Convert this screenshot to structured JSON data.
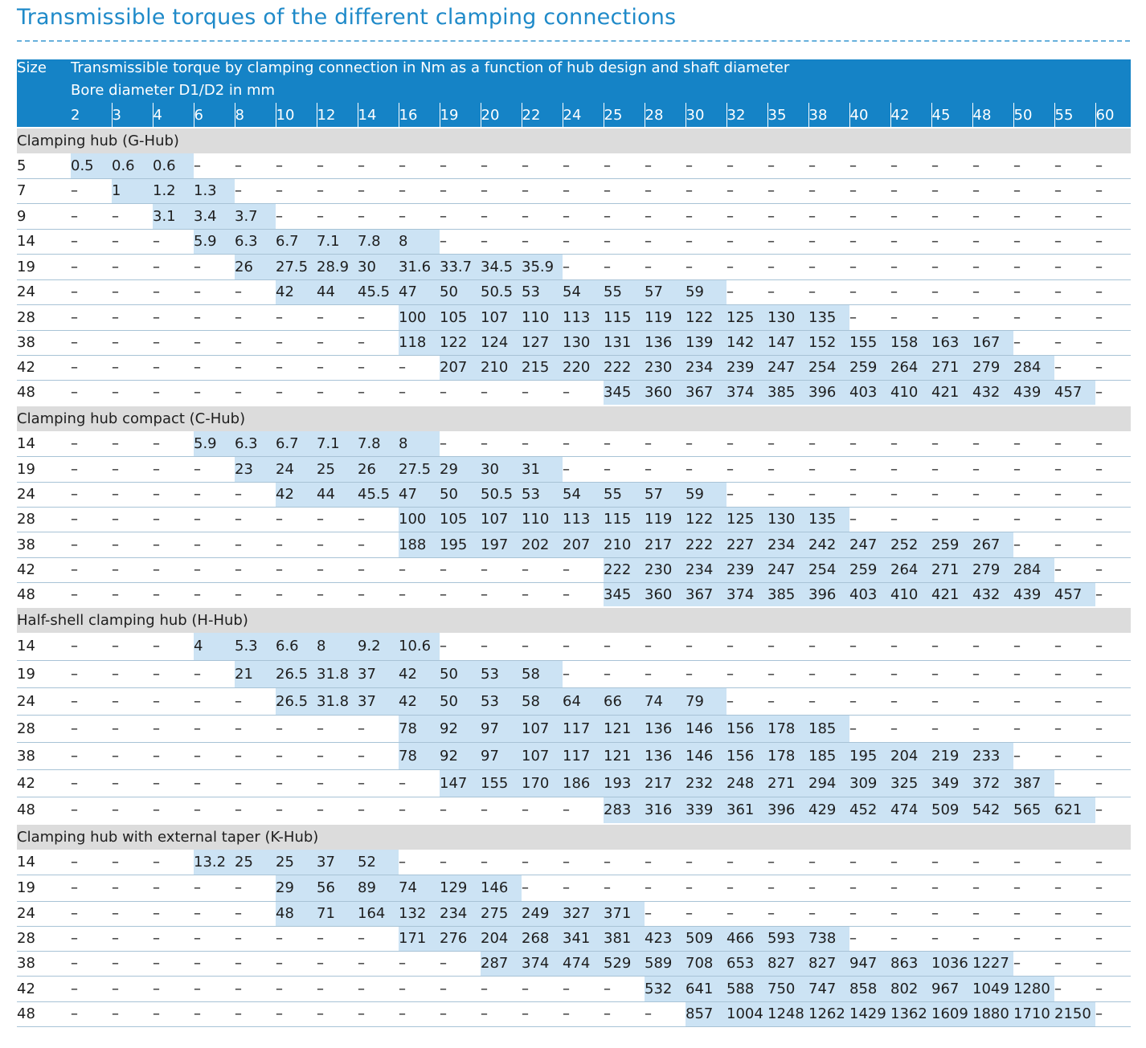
{
  "title": "Transmissible torques of the different clamping connections",
  "table": {
    "size_header": "Size",
    "description": "Transmissible torque by clamping connection in Nm as a function of hub design and shaft diameter",
    "bore_label": "Bore diameter D1/D2 in mm",
    "diameters": [
      "2",
      "3",
      "4",
      "6",
      "8",
      "10",
      "12",
      "14",
      "16",
      "19",
      "20",
      "22",
      "24",
      "25",
      "28",
      "30",
      "32",
      "35",
      "38",
      "40",
      "42",
      "45",
      "48",
      "50",
      "55",
      "60"
    ],
    "sections": [
      {
        "name": "Clamping hub (G-Hub)",
        "rows": [
          {
            "size": "5",
            "values": [
              "0.5",
              "0.6",
              "0.6",
              "–",
              "–",
              "–",
              "–",
              "–",
              "–",
              "–",
              "–",
              "–",
              "–",
              "–",
              "–",
              "–",
              "–",
              "–",
              "–",
              "–",
              "–",
              "–",
              "–",
              "–",
              "–",
              "–"
            ]
          },
          {
            "size": "7",
            "values": [
              "–",
              "1",
              "1.2",
              "1.3",
              "–",
              "–",
              "–",
              "–",
              "–",
              "–",
              "–",
              "–",
              "–",
              "–",
              "–",
              "–",
              "–",
              "–",
              "–",
              "–",
              "–",
              "–",
              "–",
              "–",
              "–",
              "–"
            ]
          },
          {
            "size": "9",
            "values": [
              "–",
              "–",
              "3.1",
              "3.4",
              "3.7",
              "–",
              "–",
              "–",
              "–",
              "–",
              "–",
              "–",
              "–",
              "–",
              "–",
              "–",
              "–",
              "–",
              "–",
              "–",
              "–",
              "–",
              "–",
              "–",
              "–",
              "–"
            ]
          },
          {
            "size": "14",
            "values": [
              "–",
              "–",
              "–",
              "5.9",
              "6.3",
              "6.7",
              "7.1",
              "7.8",
              "8",
              "–",
              "–",
              "–",
              "–",
              "–",
              "–",
              "–",
              "–",
              "–",
              "–",
              "–",
              "–",
              "–",
              "–",
              "–",
              "–",
              "–"
            ]
          },
          {
            "size": "19",
            "values": [
              "–",
              "–",
              "–",
              "–",
              "26",
              "27.5",
              "28.9",
              "30",
              "31.6",
              "33.7",
              "34.5",
              "35.9",
              "–",
              "–",
              "–",
              "–",
              "–",
              "–",
              "–",
              "–",
              "–",
              "–",
              "–",
              "–",
              "–",
              "–"
            ]
          },
          {
            "size": "24",
            "values": [
              "–",
              "–",
              "–",
              "–",
              "–",
              "42",
              "44",
              "45.5",
              "47",
              "50",
              "50.5",
              "53",
              "54",
              "55",
              "57",
              "59",
              "–",
              "–",
              "–",
              "–",
              "–",
              "–",
              "–",
              "–",
              "–",
              "–"
            ]
          },
          {
            "size": "28",
            "values": [
              "–",
              "–",
              "–",
              "–",
              "–",
              "–",
              "–",
              "–",
              "100",
              "105",
              "107",
              "110",
              "113",
              "115",
              "119",
              "122",
              "125",
              "130",
              "135",
              "–",
              "–",
              "–",
              "–",
              "–",
              "–",
              "–"
            ]
          },
          {
            "size": "38",
            "values": [
              "–",
              "–",
              "–",
              "–",
              "–",
              "–",
              "–",
              "–",
              "118",
              "122",
              "124",
              "127",
              "130",
              "131",
              "136",
              "139",
              "142",
              "147",
              "152",
              "155",
              "158",
              "163",
              "167",
              "–",
              "–",
              "–"
            ]
          },
          {
            "size": "42",
            "values": [
              "–",
              "–",
              "–",
              "–",
              "–",
              "–",
              "–",
              "–",
              "–",
              "207",
              "210",
              "215",
              "220",
              "222",
              "230",
              "234",
              "239",
              "247",
              "254",
              "259",
              "264",
              "271",
              "279",
              "284",
              "–",
              "–"
            ]
          },
          {
            "size": "48",
            "values": [
              "–",
              "–",
              "–",
              "–",
              "–",
              "–",
              "–",
              "–",
              "–",
              "–",
              "–",
              "–",
              "–",
              "345",
              "360",
              "367",
              "374",
              "385",
              "396",
              "403",
              "410",
              "421",
              "432",
              "439",
              "457",
              "–"
            ]
          }
        ]
      },
      {
        "name": "Clamping hub compact (C-Hub)",
        "rows": [
          {
            "size": "14",
            "values": [
              "–",
              "–",
              "–",
              "5.9",
              "6.3",
              "6.7",
              "7.1",
              "7.8",
              "8",
              "–",
              "–",
              "–",
              "–",
              "–",
              "–",
              "–",
              "–",
              "–",
              "–",
              "–",
              "–",
              "–",
              "–",
              "–",
              "–",
              "–"
            ]
          },
          {
            "size": "19",
            "values": [
              "–",
              "–",
              "–",
              "–",
              "23",
              "24",
              "25",
              "26",
              "27.5",
              "29",
              "30",
              "31",
              "–",
              "–",
              "–",
              "–",
              "–",
              "–",
              "–",
              "–",
              "–",
              "–",
              "–",
              "–",
              "–",
              "–"
            ]
          },
          {
            "size": "24",
            "values": [
              "–",
              "–",
              "–",
              "–",
              "–",
              "42",
              "44",
              "45.5",
              "47",
              "50",
              "50.5",
              "53",
              "54",
              "55",
              "57",
              "59",
              "–",
              "–",
              "–",
              "–",
              "–",
              "–",
              "–",
              "–",
              "–",
              "–"
            ]
          },
          {
            "size": "28",
            "values": [
              "–",
              "–",
              "–",
              "–",
              "–",
              "–",
              "–",
              "–",
              "100",
              "105",
              "107",
              "110",
              "113",
              "115",
              "119",
              "122",
              "125",
              "130",
              "135",
              "–",
              "–",
              "–",
              "–",
              "–",
              "–",
              "–"
            ]
          },
          {
            "size": "38",
            "values": [
              "–",
              "–",
              "–",
              "–",
              "–",
              "–",
              "–",
              "–",
              "188",
              "195",
              "197",
              "202",
              "207",
              "210",
              "217",
              "222",
              "227",
              "234",
              "242",
              "247",
              "252",
              "259",
              "267",
              "–",
              "–",
              "–"
            ]
          },
          {
            "size": "42",
            "values": [
              "–",
              "–",
              "–",
              "–",
              "–",
              "–",
              "–",
              "–",
              "–",
              "–",
              "–",
              "–",
              "–",
              "222",
              "230",
              "234",
              "239",
              "247",
              "254",
              "259",
              "264",
              "271",
              "279",
              "284",
              "–",
              "–"
            ]
          },
          {
            "size": "48",
            "values": [
              "–",
              "–",
              "–",
              "–",
              "–",
              "–",
              "–",
              "–",
              "–",
              "–",
              "–",
              "–",
              "–",
              "345",
              "360",
              "367",
              "374",
              "385",
              "396",
              "403",
              "410",
              "421",
              "432",
              "439",
              "457",
              "–"
            ]
          }
        ]
      },
      {
        "name": "Half-shell clamping hub (H-Hub)",
        "rows": [
          {
            "size": "14",
            "values": [
              "–",
              "–",
              "–",
              "4",
              "5.3",
              "6.6",
              "8",
              "9.2",
              "10.6",
              "–",
              "–",
              "–",
              "–",
              "–",
              "–",
              "–",
              "–",
              "–",
              "–",
              "–",
              "–",
              "–",
              "–",
              "–",
              "–",
              "–"
            ]
          },
          {
            "size": "19",
            "values": [
              "–",
              "–",
              "–",
              "–",
              "21",
              "26.5",
              "31.8",
              "37",
              "42",
              "50",
              "53",
              "58",
              "–",
              "–",
              "–",
              "–",
              "–",
              "–",
              "–",
              "–",
              "–",
              "–",
              "–",
              "–",
              "–",
              "–"
            ]
          },
          {
            "size": "24",
            "values": [
              "–",
              "–",
              "–",
              "–",
              "–",
              "26.5",
              "31.8",
              "37",
              "42",
              "50",
              "53",
              "58",
              "64",
              "66",
              "74",
              "79",
              "–",
              "–",
              "–",
              "–",
              "–",
              "–",
              "–",
              "–",
              "–",
              "–"
            ]
          },
          {
            "size": "28",
            "values": [
              "–",
              "–",
              "–",
              "–",
              "–",
              "–",
              "–",
              "–",
              "78",
              "92",
              "97",
              "107",
              "117",
              "121",
              "136",
              "146",
              "156",
              "178",
              "185",
              "–",
              "–",
              "–",
              "–",
              "–",
              "–",
              "–"
            ]
          },
          {
            "size": "38",
            "values": [
              "–",
              "–",
              "–",
              "–",
              "–",
              "–",
              "–",
              "–",
              "78",
              "92",
              "97",
              "107",
              "117",
              "121",
              "136",
              "146",
              "156",
              "178",
              "185",
              "195",
              "204",
              "219",
              "233",
              "–",
              "–",
              "–"
            ]
          },
          {
            "size": "42",
            "values": [
              "–",
              "–",
              "–",
              "–",
              "–",
              "–",
              "–",
              "–",
              "–",
              "147",
              "155",
              "170",
              "186",
              "193",
              "217",
              "232",
              "248",
              "271",
              "294",
              "309",
              "325",
              "349",
              "372",
              "387",
              "–",
              "–"
            ]
          },
          {
            "size": "48",
            "values": [
              "–",
              "–",
              "–",
              "–",
              "–",
              "–",
              "–",
              "–",
              "–",
              "–",
              "–",
              "–",
              "–",
              "283",
              "316",
              "339",
              "361",
              "396",
              "429",
              "452",
              "474",
              "509",
              "542",
              "565",
              "621",
              "–"
            ]
          }
        ]
      },
      {
        "name": "Clamping hub with external taper (K-Hub)",
        "rows": [
          {
            "size": "14",
            "values": [
              "–",
              "–",
              "–",
              "13.2",
              "25",
              "25",
              "37",
              "52",
              "–",
              "–",
              "–",
              "–",
              "–",
              "–",
              "–",
              "–",
              "–",
              "–",
              "–",
              "–",
              "–",
              "–",
              "–",
              "–",
              "–",
              "–"
            ]
          },
          {
            "size": "19",
            "values": [
              "–",
              "–",
              "–",
              "–",
              "–",
              "29",
              "56",
              "89",
              "74",
              "129",
              "146",
              "–",
              "–",
              "–",
              "–",
              "–",
              "–",
              "–",
              "–",
              "–",
              "–",
              "–",
              "–",
              "–",
              "–",
              "–"
            ]
          },
          {
            "size": "24",
            "values": [
              "–",
              "–",
              "–",
              "–",
              "–",
              "48",
              "71",
              "164",
              "132",
              "234",
              "275",
              "249",
              "327",
              "371",
              "–",
              "–",
              "–",
              "–",
              "–",
              "–",
              "–",
              "–",
              "–",
              "–",
              "–",
              "–"
            ]
          },
          {
            "size": "28",
            "values": [
              "–",
              "–",
              "–",
              "–",
              "–",
              "–",
              "–",
              "–",
              "171",
              "276",
              "204",
              "268",
              "341",
              "381",
              "423",
              "509",
              "466",
              "593",
              "738",
              "–",
              "–",
              "–",
              "–",
              "–",
              "–",
              "–"
            ]
          },
          {
            "size": "38",
            "values": [
              "–",
              "–",
              "–",
              "–",
              "–",
              "–",
              "–",
              "–",
              "–",
              "–",
              "287",
              "374",
              "474",
              "529",
              "589",
              "708",
              "653",
              "827",
              "827",
              "947",
              "863",
              "1036",
              "1227",
              "–",
              "–",
              "–"
            ]
          },
          {
            "size": "42",
            "values": [
              "–",
              "–",
              "–",
              "–",
              "–",
              "–",
              "–",
              "–",
              "–",
              "–",
              "–",
              "–",
              "–",
              "–",
              "532",
              "641",
              "588",
              "750",
              "747",
              "858",
              "802",
              "967",
              "1049",
              "1280",
              "–",
              "–"
            ]
          },
          {
            "size": "48",
            "values": [
              "–",
              "–",
              "–",
              "–",
              "–",
              "–",
              "–",
              "–",
              "–",
              "–",
              "–",
              "–",
              "–",
              "–",
              "–",
              "857",
              "1004",
              "1248",
              "1262",
              "1429",
              "1362",
              "1609",
              "1880",
              "1710",
              "2150",
              "–"
            ]
          }
        ]
      }
    ]
  }
}
